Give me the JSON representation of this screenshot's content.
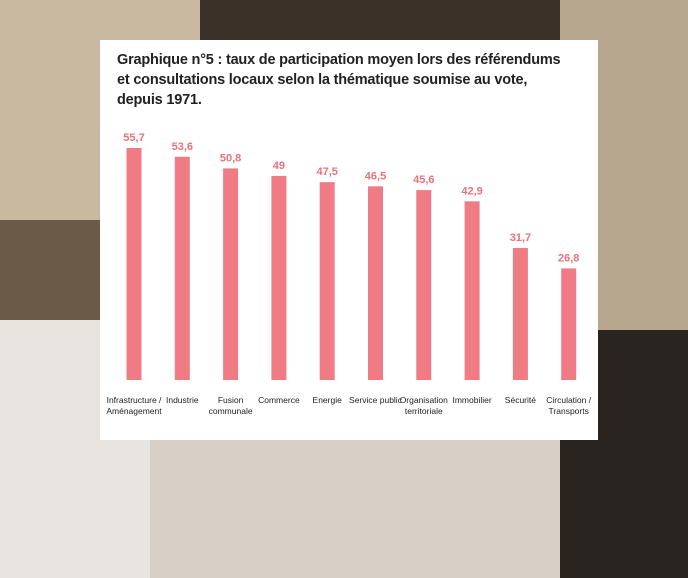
{
  "chart_data": {
    "type": "bar",
    "title": "Graphique n°5 : taux de participation moyen lors des référendums et consultations locaux selon la thématique soumise au vote, depuis 1971.",
    "categories": [
      "Infrastructure / Aménagement",
      "Industrie",
      "Fusion communale",
      "Commerce",
      "Energie",
      "Service public",
      "Organisation territoriale",
      "Immobilier",
      "Sécurité",
      "Circulation / Transports"
    ],
    "values": [
      55.7,
      53.6,
      50.8,
      49,
      47.5,
      46.5,
      45.6,
      42.9,
      31.7,
      26.8
    ],
    "value_labels": [
      "55,7",
      "53,6",
      "50,8",
      "49",
      "47,5",
      "46,5",
      "45,6",
      "42,9",
      "31,7",
      "26,8"
    ],
    "color": "#ef7b84"
  }
}
